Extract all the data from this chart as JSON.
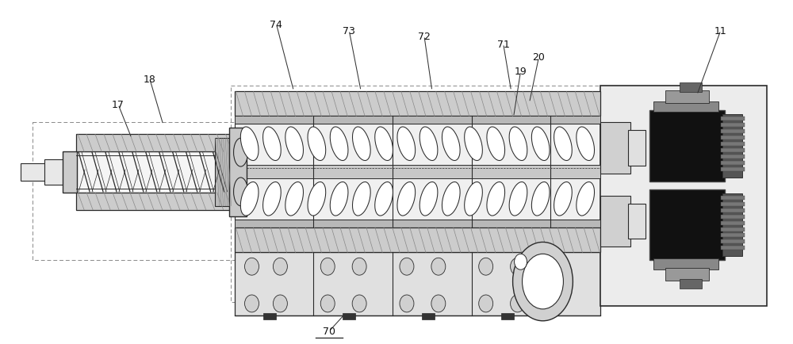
{
  "bg": "white",
  "lc": "#2a2a2a",
  "gray_light": "#e8e8e8",
  "gray_mid": "#cccccc",
  "gray_dark": "#999999",
  "gray_barrel": "#d4d4d4",
  "black": "#111111",
  "hatch_gray": "#aaaaaa",
  "dashed_gray": "#777777"
}
